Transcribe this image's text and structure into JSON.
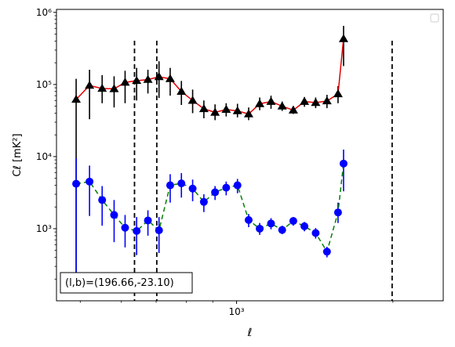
{
  "chart_data": {
    "type": "scatter",
    "title": "",
    "xlabel": "ℓ",
    "ylabel": "Cℓ  [mK²]",
    "xscale": "log",
    "yscale": "log",
    "xlim": [
      450,
      2500
    ],
    "ylim": [
      100,
      1100000
    ],
    "xticks": [
      {
        "value": 1000,
        "label": "10³"
      }
    ],
    "yticks": [
      {
        "value": 1000,
        "label": "10³"
      },
      {
        "value": 10000,
        "label": "10⁴"
      },
      {
        "value": 100000,
        "label": "10⁵"
      },
      {
        "value": 1000000,
        "label": "10⁶"
      }
    ],
    "grid": false,
    "legend": {
      "placement": "top-right",
      "entries": []
    },
    "annotation": "(l,b)=(196.66,-23.10)",
    "vlines": [
      636,
      702,
      1993
    ],
    "series": [
      {
        "color": "#e00000",
        "marker": "triangle",
        "marker_color": "#000000",
        "errorbar_color": "#000000",
        "points": [
          {
            "x": 491,
            "y": 62000,
            "lo": 200,
            "hi": 120000
          },
          {
            "x": 521,
            "y": 97000,
            "lo": 33000,
            "hi": 160000
          },
          {
            "x": 551,
            "y": 88000,
            "lo": 55000,
            "hi": 135000
          },
          {
            "x": 581,
            "y": 87000,
            "lo": 48000,
            "hi": 130000
          },
          {
            "x": 610,
            "y": 107000,
            "lo": 55000,
            "hi": 155000
          },
          {
            "x": 642,
            "y": 113000,
            "lo": 60000,
            "hi": 170000
          },
          {
            "x": 675,
            "y": 117000,
            "lo": 75000,
            "hi": 160000
          },
          {
            "x": 709,
            "y": 128000,
            "lo": 65000,
            "hi": 210000
          },
          {
            "x": 745,
            "y": 120000,
            "lo": 70000,
            "hi": 170000
          },
          {
            "x": 783,
            "y": 80000,
            "lo": 52000,
            "hi": 112000
          },
          {
            "x": 823,
            "y": 60000,
            "lo": 40000,
            "hi": 85000
          },
          {
            "x": 865,
            "y": 46000,
            "lo": 34000,
            "hi": 60000
          },
          {
            "x": 909,
            "y": 41000,
            "lo": 32000,
            "hi": 53000
          },
          {
            "x": 955,
            "y": 45000,
            "lo": 36000,
            "hi": 55000
          },
          {
            "x": 1004,
            "y": 43000,
            "lo": 35000,
            "hi": 54000
          },
          {
            "x": 1055,
            "y": 39000,
            "lo": 32000,
            "hi": 48000
          },
          {
            "x": 1108,
            "y": 54000,
            "lo": 44000,
            "hi": 66000
          },
          {
            "x": 1165,
            "y": 58000,
            "lo": 46000,
            "hi": 70000
          },
          {
            "x": 1224,
            "y": 50000,
            "lo": 43000,
            "hi": 58000
          },
          {
            "x": 1286,
            "y": 44000,
            "lo": 39000,
            "hi": 50000
          },
          {
            "x": 1351,
            "y": 58000,
            "lo": 49000,
            "hi": 67000
          },
          {
            "x": 1420,
            "y": 56000,
            "lo": 47000,
            "hi": 66000
          },
          {
            "x": 1493,
            "y": 59000,
            "lo": 47000,
            "hi": 72000
          },
          {
            "x": 1568,
            "y": 74000,
            "lo": 55000,
            "hi": 95000
          },
          {
            "x": 1607,
            "y": 430000,
            "lo": 180000,
            "hi": 650000
          }
        ]
      },
      {
        "color": "#008000",
        "linestyle": "dashed",
        "marker": "circle",
        "marker_color": "#0000ff",
        "errorbar_color": "#0000ff",
        "points": [
          {
            "x": 491,
            "y": 4200,
            "lo": 230,
            "hi": 9500
          },
          {
            "x": 521,
            "y": 4500,
            "lo": 1500,
            "hi": 7500
          },
          {
            "x": 551,
            "y": 2500,
            "lo": 1100,
            "hi": 3900
          },
          {
            "x": 581,
            "y": 1550,
            "lo": 650,
            "hi": 2500
          },
          {
            "x": 610,
            "y": 1030,
            "lo": 550,
            "hi": 1550
          },
          {
            "x": 642,
            "y": 930,
            "lo": 430,
            "hi": 1450
          },
          {
            "x": 675,
            "y": 1300,
            "lo": 800,
            "hi": 1800
          },
          {
            "x": 709,
            "y": 950,
            "lo": 460,
            "hi": 1450
          },
          {
            "x": 745,
            "y": 4000,
            "lo": 2300,
            "hi": 5700
          },
          {
            "x": 783,
            "y": 4250,
            "lo": 2700,
            "hi": 5900
          },
          {
            "x": 823,
            "y": 3600,
            "lo": 2400,
            "hi": 4800
          },
          {
            "x": 865,
            "y": 2350,
            "lo": 1700,
            "hi": 3000
          },
          {
            "x": 909,
            "y": 3200,
            "lo": 2500,
            "hi": 3900
          },
          {
            "x": 955,
            "y": 3700,
            "lo": 2900,
            "hi": 4500
          },
          {
            "x": 1004,
            "y": 4000,
            "lo": 3100,
            "hi": 4900
          },
          {
            "x": 1055,
            "y": 1320,
            "lo": 1050,
            "hi": 1600
          },
          {
            "x": 1108,
            "y": 1000,
            "lo": 820,
            "hi": 1200
          },
          {
            "x": 1165,
            "y": 1180,
            "lo": 980,
            "hi": 1400
          },
          {
            "x": 1224,
            "y": 960,
            "lo": 840,
            "hi": 1100
          },
          {
            "x": 1286,
            "y": 1280,
            "lo": 1100,
            "hi": 1450
          },
          {
            "x": 1351,
            "y": 1080,
            "lo": 920,
            "hi": 1240
          },
          {
            "x": 1420,
            "y": 870,
            "lo": 730,
            "hi": 1020
          },
          {
            "x": 1493,
            "y": 480,
            "lo": 400,
            "hi": 560
          },
          {
            "x": 1568,
            "y": 1680,
            "lo": 1200,
            "hi": 2300
          },
          {
            "x": 1607,
            "y": 8000,
            "lo": 3300,
            "hi": 12500
          }
        ]
      }
    ]
  }
}
